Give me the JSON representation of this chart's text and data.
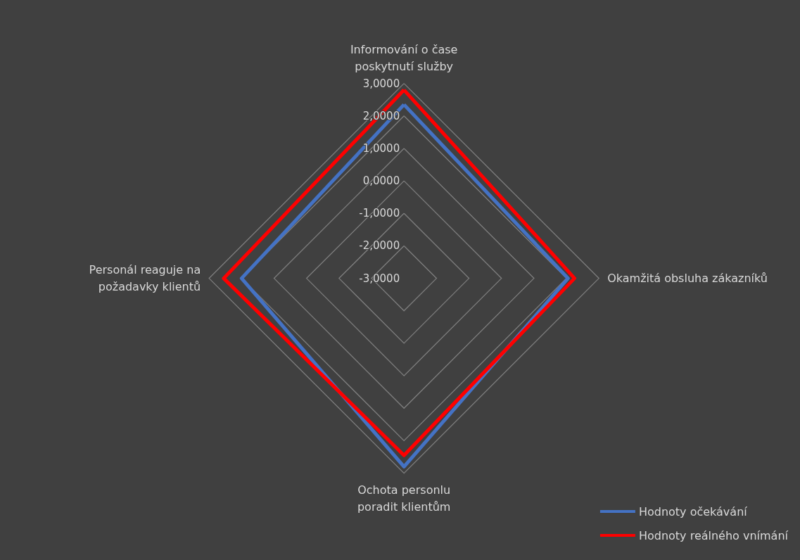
{
  "chart_data": {
    "type": "radar",
    "categories": [
      "Informování o čase poskytnutí služby",
      "Okamžitá obsluha zákazníků",
      "Ochota personlu poradit klientům",
      "Personál reaguje na požadavky klientů"
    ],
    "series": [
      {
        "name": "Hodnoty očekávání",
        "color": "#4472c4",
        "values": [
          2.35,
          2.05,
          2.8,
          2.0
        ]
      },
      {
        "name": "Hodnoty reálného vnímání",
        "color": "#ff0000",
        "values": [
          2.8,
          2.25,
          2.45,
          2.55
        ]
      }
    ],
    "ylim": [
      -3,
      3
    ],
    "yticks": [
      {
        "value": -3,
        "label": "-3,0000"
      },
      {
        "value": -2,
        "label": "-2,0000"
      },
      {
        "value": -1,
        "label": "-1,0000"
      },
      {
        "value": 0,
        "label": "0,0000"
      },
      {
        "value": 1,
        "label": "1,0000"
      },
      {
        "value": 2,
        "label": "2,0000"
      },
      {
        "value": 3,
        "label": "3,0000"
      }
    ],
    "grid": true,
    "legend": "bottom right",
    "marker": "none",
    "line_style": "solid"
  }
}
